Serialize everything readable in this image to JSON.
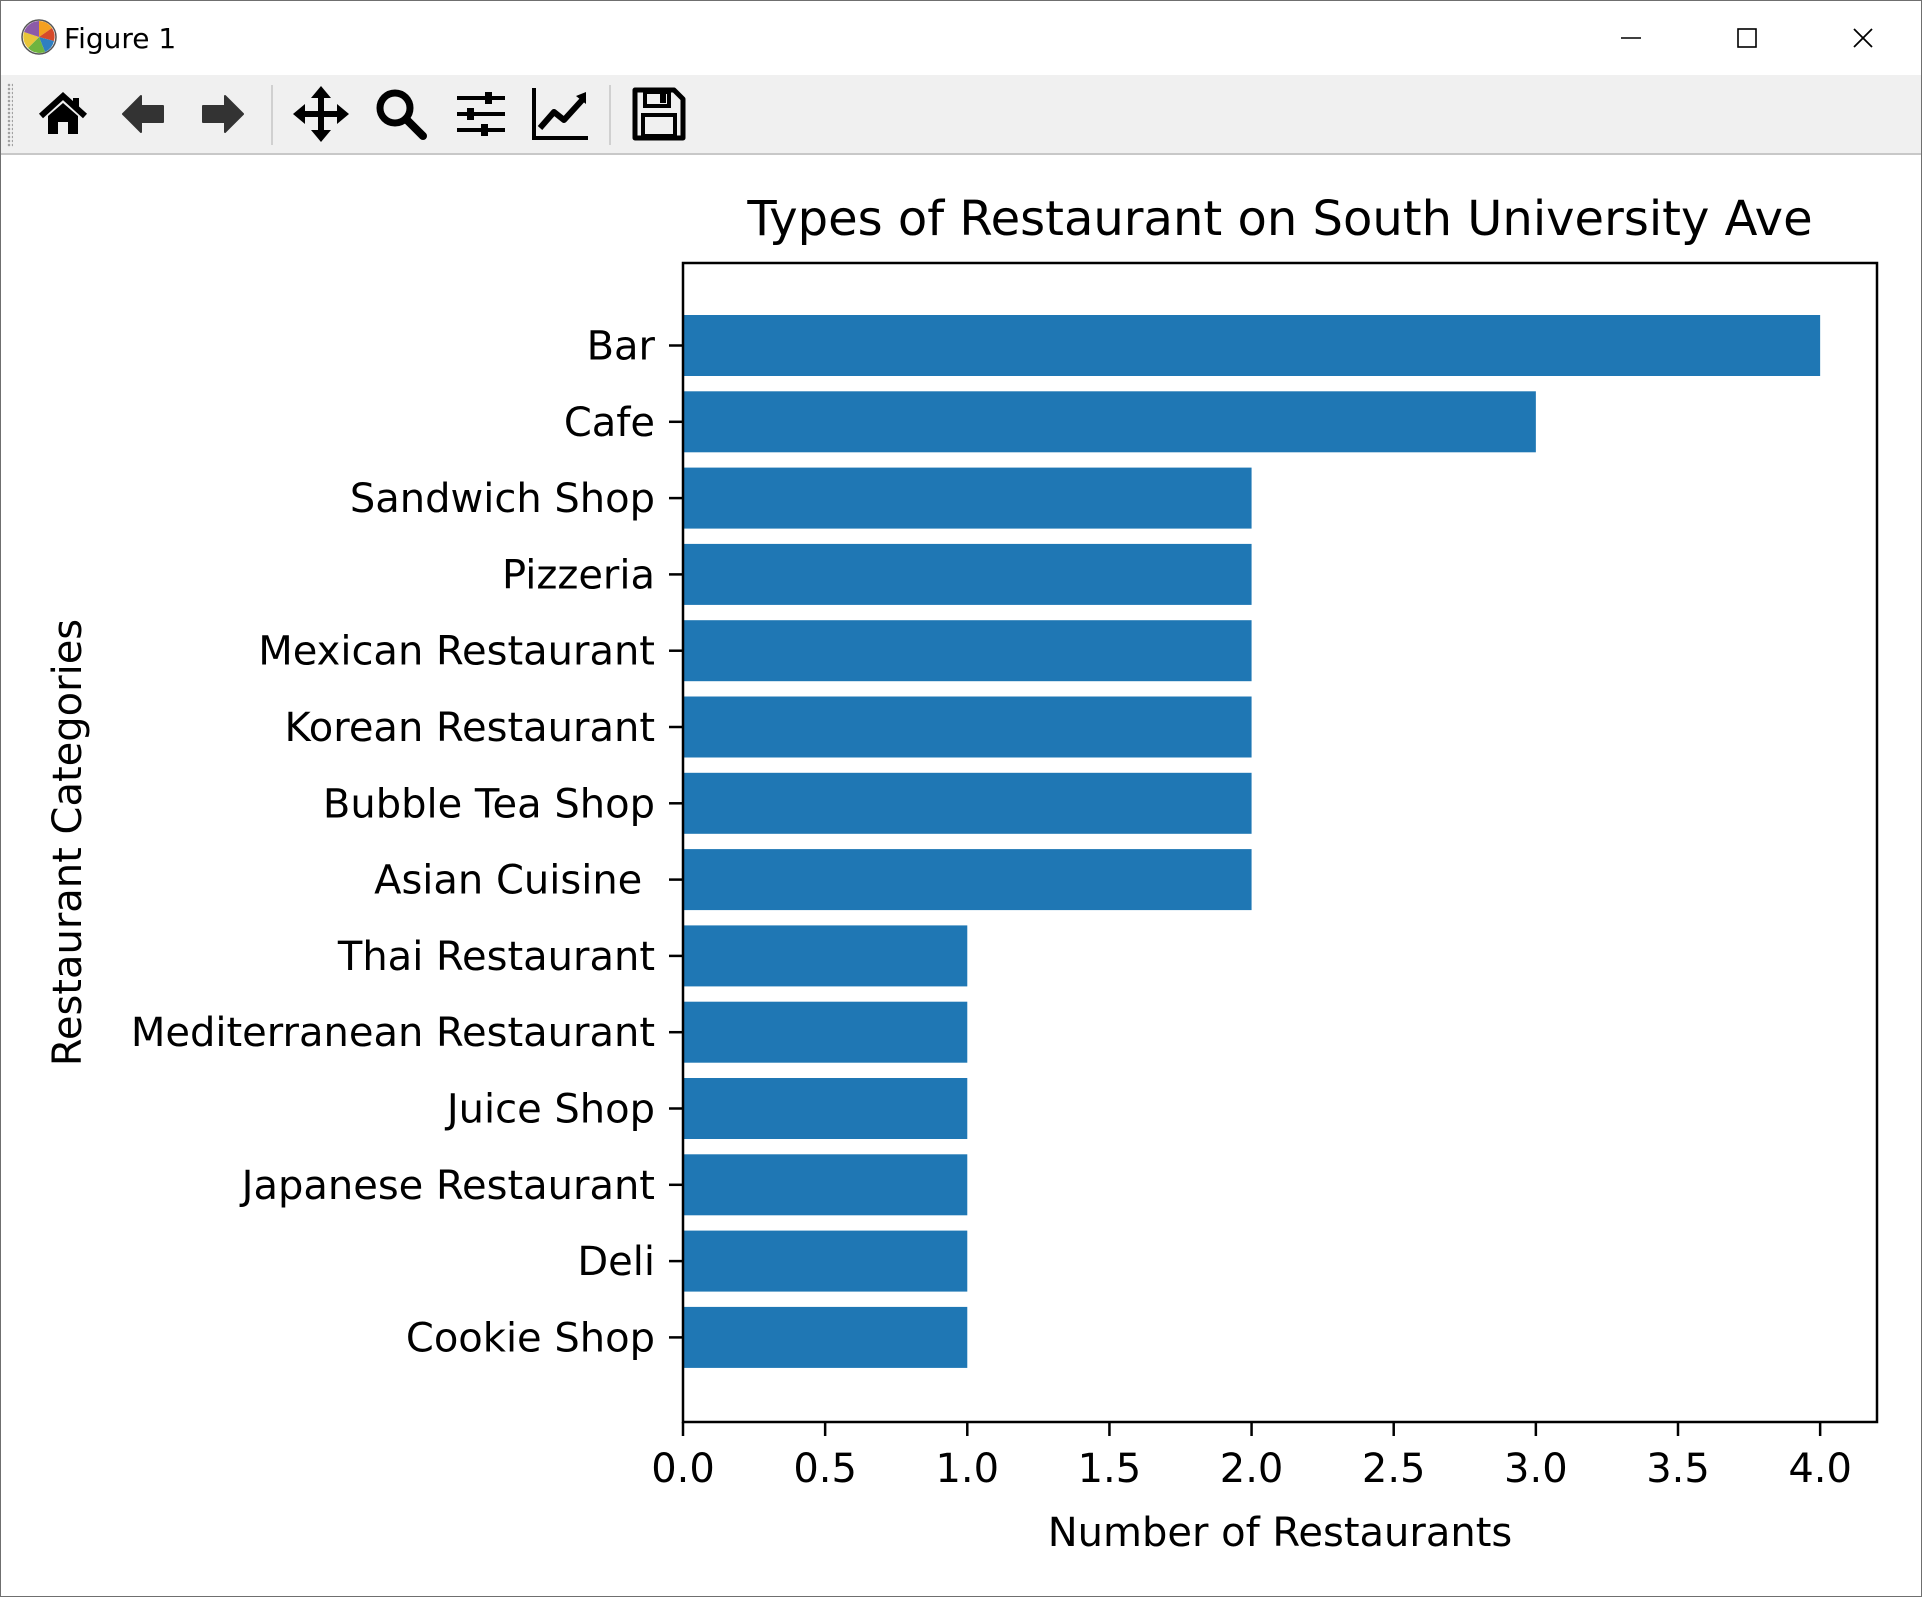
{
  "window": {
    "title": "Figure 1"
  },
  "toolbar": {
    "tools": [
      {
        "name": "home-icon"
      },
      {
        "name": "back-arrow-icon"
      },
      {
        "name": "forward-arrow-icon"
      },
      {
        "name": "pan-icon"
      },
      {
        "name": "zoom-icon"
      },
      {
        "name": "configure-subplots-icon"
      },
      {
        "name": "edit-axis-icon"
      },
      {
        "name": "save-icon"
      }
    ]
  },
  "colors": {
    "bar": "#1f77b4"
  },
  "chart_data": {
    "type": "bar",
    "orientation": "horizontal",
    "title": "Types of Restaurant on South University Ave",
    "xlabel": "Number of Restaurants",
    "ylabel": "Restaurant Categories",
    "categories": [
      "Bar",
      "Cafe",
      "Sandwich Shop",
      "Pizzeria",
      "Mexican Restaurant",
      "Korean Restaurant",
      "Bubble Tea Shop",
      "Asian Cuisine ",
      "Thai Restaurant",
      "Mediterranean Restaurant",
      "Juice Shop",
      "Japanese Restaurant",
      "Deli",
      "Cookie Shop"
    ],
    "values": [
      4,
      3,
      2,
      2,
      2,
      2,
      2,
      2,
      1,
      1,
      1,
      1,
      1,
      1
    ],
    "xlim": [
      0,
      4.2
    ],
    "xticks": [
      "0.0",
      "0.5",
      "1.0",
      "1.5",
      "2.0",
      "2.5",
      "3.0",
      "3.5",
      "4.0"
    ],
    "grid": false
  }
}
